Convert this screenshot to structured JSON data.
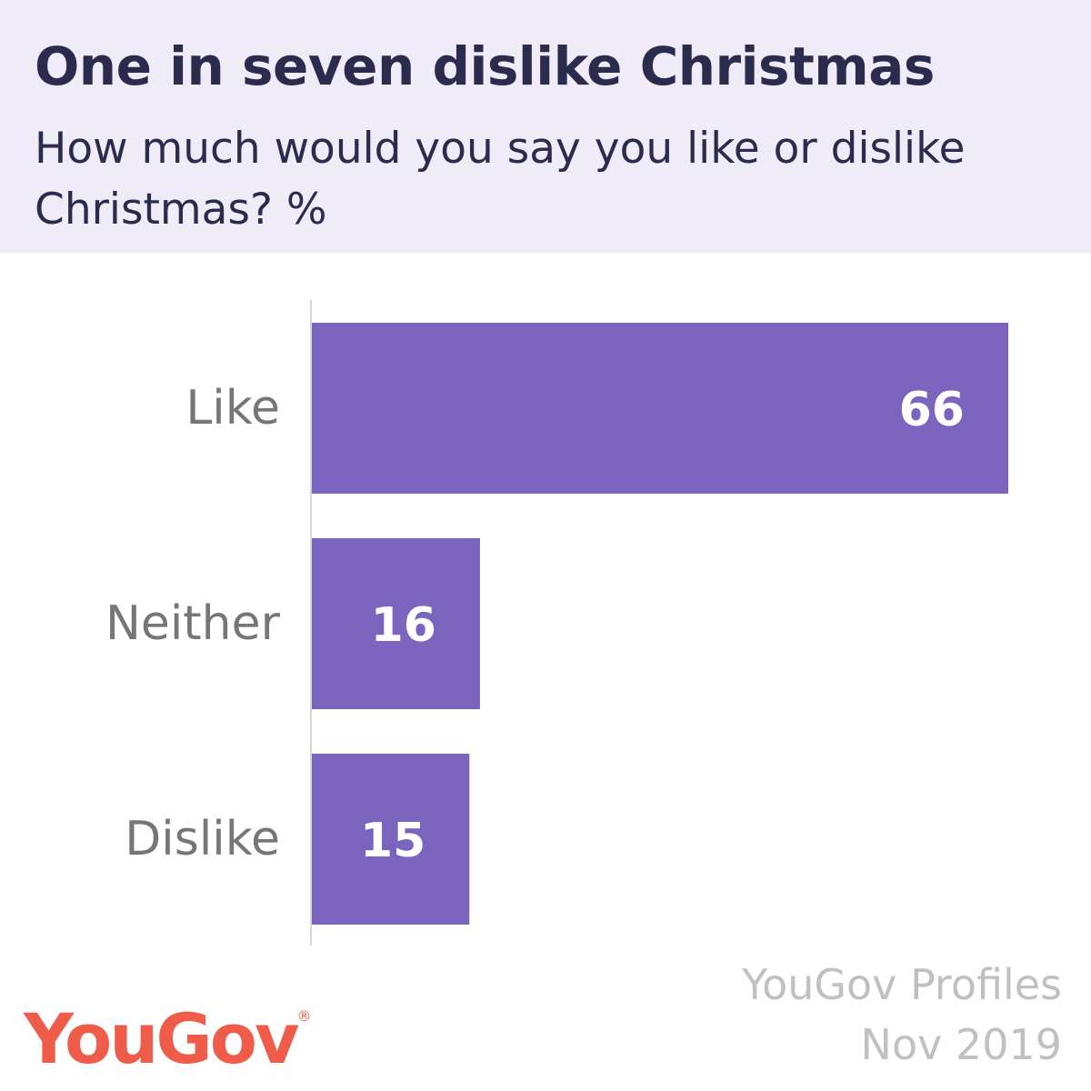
{
  "header": {
    "title": "One in seven dislike Christmas",
    "subtitle": "How much would you say you like or dislike Christmas? %"
  },
  "chart_data": {
    "type": "bar",
    "orientation": "horizontal",
    "categories": [
      "Like",
      "Neither",
      "Dislike"
    ],
    "values": [
      66,
      16,
      15
    ],
    "xlim": [
      0,
      70
    ],
    "grid": false,
    "data_labels": true
  },
  "source": {
    "line1": "YouGov Profiles",
    "line2": "Nov 2019"
  },
  "logo": {
    "text": "YouGov",
    "registered_mark": "®"
  },
  "colors": {
    "header_background": "#efebf7",
    "title_text": "#2b2b4d",
    "bar": "#7b64bd",
    "bar_label": "#ffffff",
    "category_label": "#767676",
    "axis_line": "#d6d6d6",
    "source_text": "#c0c0c0",
    "brand": "#f05c4a"
  }
}
